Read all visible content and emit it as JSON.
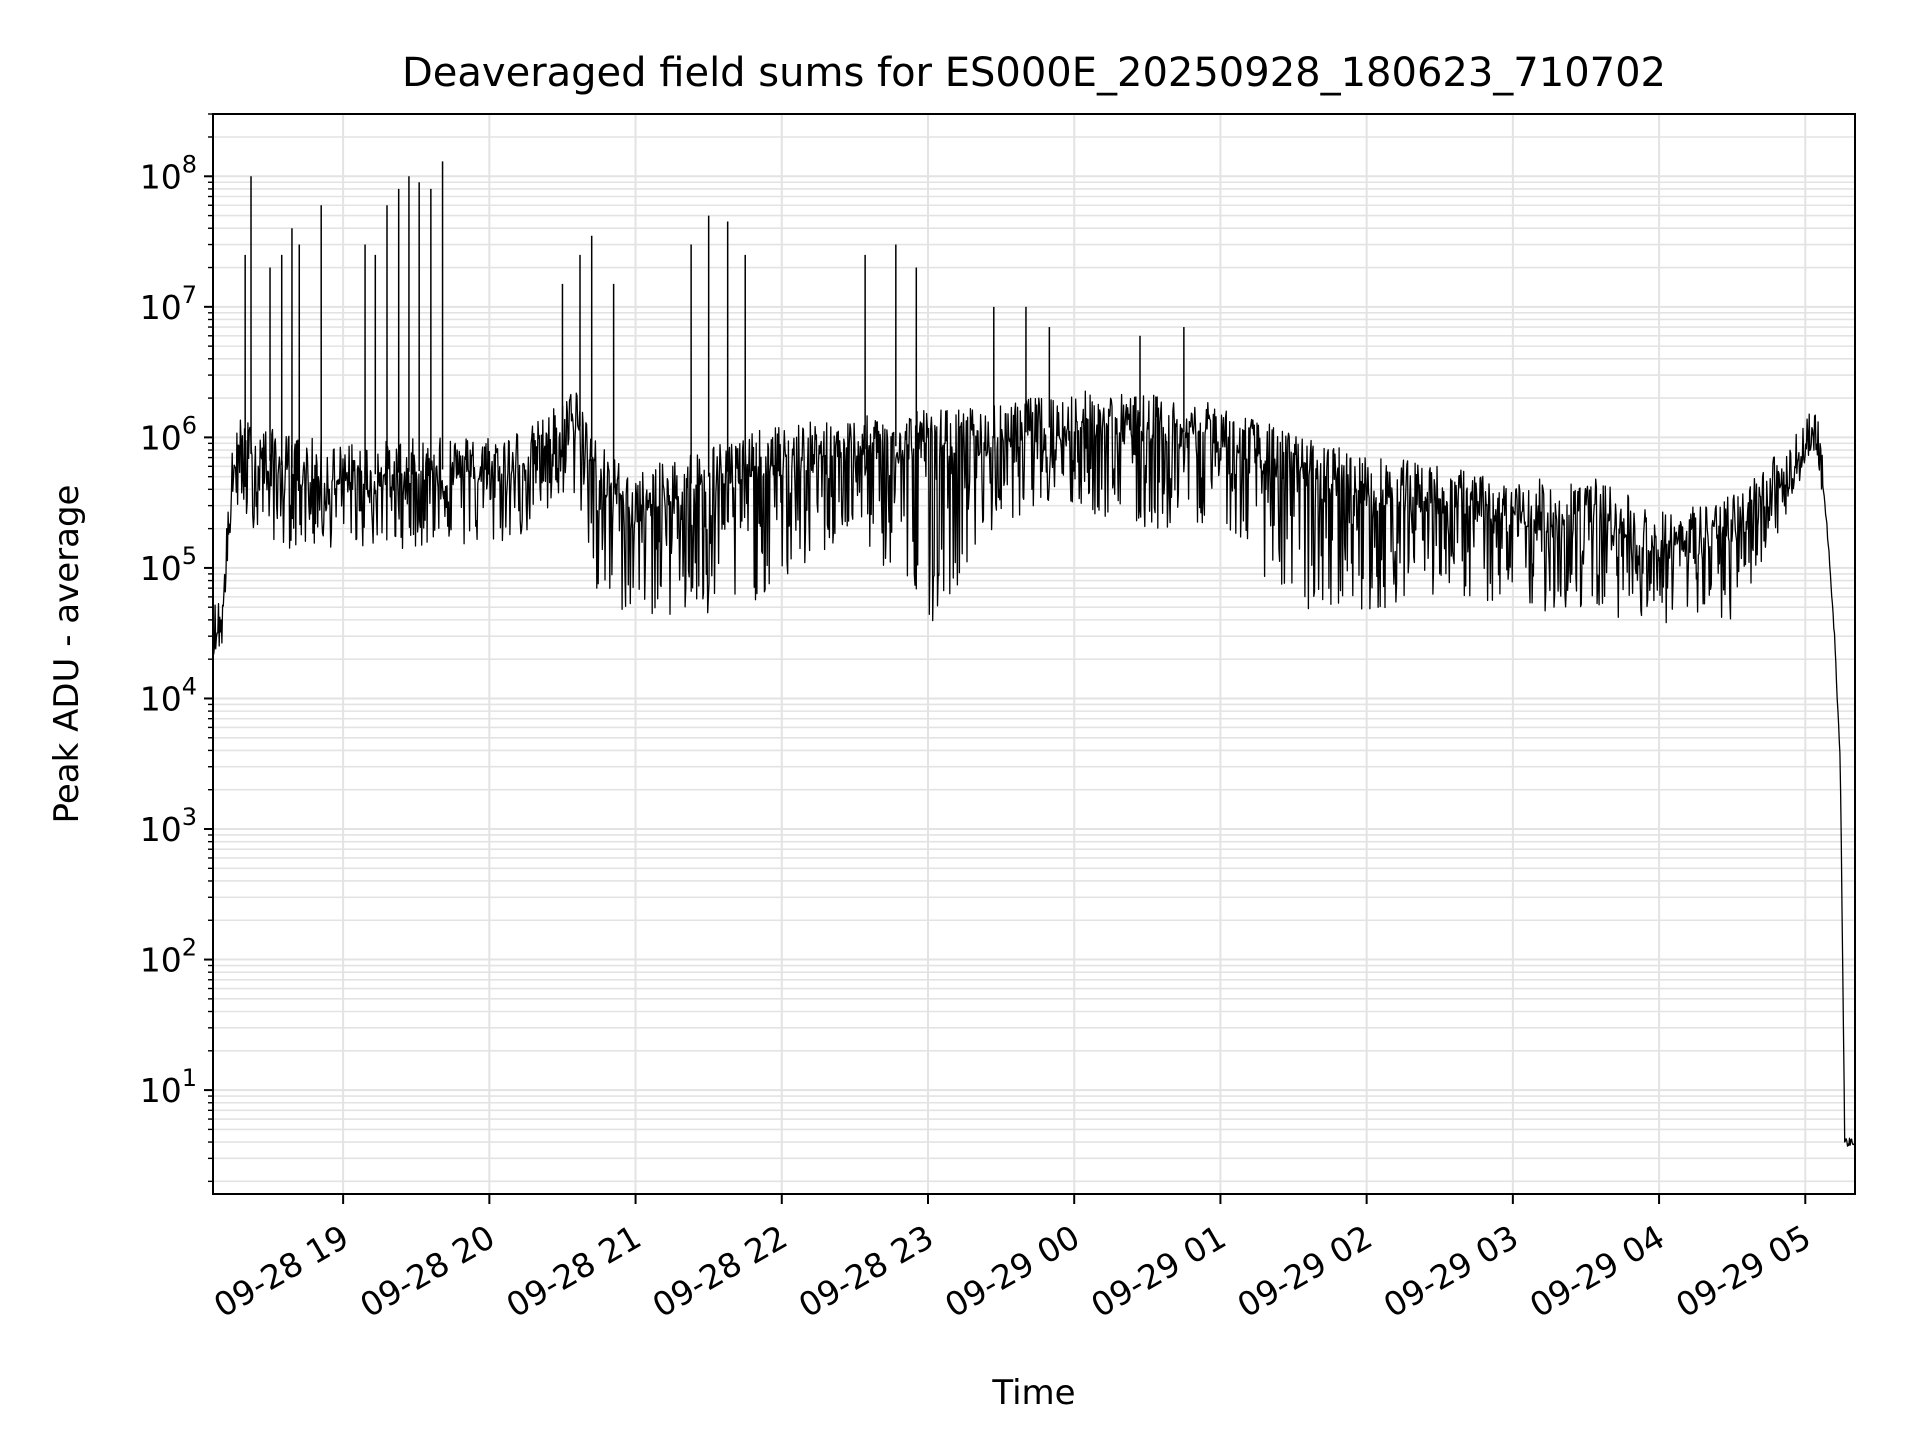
{
  "chart_data": {
    "type": "line",
    "title": "Deaveraged field sums for ES000E_20250928_180623_710702",
    "xlabel": "Time",
    "ylabel": "Peak ADU - average",
    "yscale": "log",
    "ylim": [
      1.6,
      300000000
    ],
    "xlim_hours": [
      18.11,
      29.34
    ],
    "x_ticks": [
      {
        "label": "09-28 19",
        "hour": 19
      },
      {
        "label": "09-28 20",
        "hour": 20
      },
      {
        "label": "09-28 21",
        "hour": 21
      },
      {
        "label": "09-28 22",
        "hour": 22
      },
      {
        "label": "09-28 23",
        "hour": 23
      },
      {
        "label": "09-29 00",
        "hour": 24
      },
      {
        "label": "09-29 01",
        "hour": 25
      },
      {
        "label": "09-29 02",
        "hour": 26
      },
      {
        "label": "09-29 03",
        "hour": 27
      },
      {
        "label": "09-29 04",
        "hour": 28
      },
      {
        "label": "09-29 05",
        "hour": 29
      }
    ],
    "y_ticks": [
      {
        "base": "10",
        "exp": "1",
        "value": 10
      },
      {
        "base": "10",
        "exp": "2",
        "value": 100
      },
      {
        "base": "10",
        "exp": "3",
        "value": 1000
      },
      {
        "base": "10",
        "exp": "4",
        "value": 10000
      },
      {
        "base": "10",
        "exp": "5",
        "value": 100000
      },
      {
        "base": "10",
        "exp": "6",
        "value": 1000000
      },
      {
        "base": "10",
        "exp": "7",
        "value": 10000000
      },
      {
        "base": "10",
        "exp": "8",
        "value": 100000000
      }
    ],
    "grid": true,
    "line_color": "#000000",
    "grid_color": "#e3e3e3",
    "series": [
      {
        "name": "peak_adu_minus_average",
        "envelope_hours": [
          18.11,
          18.17,
          18.25,
          18.3,
          18.6,
          19.0,
          19.5,
          20.0,
          20.3,
          20.6,
          20.75,
          21.0,
          21.5,
          22.0,
          22.5,
          23.0,
          23.5,
          24.0,
          24.5,
          25.0,
          25.5,
          26.0,
          26.5,
          27.0,
          27.5,
          28.0,
          28.5,
          28.9,
          29.0,
          29.05,
          29.1,
          29.15,
          29.2,
          29.24,
          29.27,
          29.3,
          29.34
        ],
        "envelope_median": [
          30000,
          40000,
          600000,
          800000,
          600000,
          500000,
          550000,
          600000,
          700000,
          1400000,
          500000,
          300000,
          500000,
          700000,
          800000,
          900000,
          1000000,
          1300000,
          1200000,
          1000000,
          600000,
          400000,
          350000,
          250000,
          300000,
          150000,
          200000,
          550000,
          900000,
          1100000,
          700000,
          200000,
          30000,
          3000,
          4,
          4,
          4
        ],
        "envelope_low": [
          22000,
          25000,
          200000,
          250000,
          150000,
          150000,
          150000,
          150000,
          200000,
          400000,
          50000,
          50000,
          40000,
          80000,
          200000,
          40000,
          250000,
          300000,
          200000,
          250000,
          50000,
          50000,
          70000,
          50000,
          50000,
          40000,
          40000,
          300000,
          600000,
          900000,
          500000,
          150000,
          20000,
          2000,
          4,
          4,
          4
        ],
        "spikes": [
          {
            "hour": 18.37,
            "value": 100000000
          },
          {
            "hour": 18.33,
            "value": 25000000
          },
          {
            "hour": 18.5,
            "value": 20000000
          },
          {
            "hour": 18.58,
            "value": 25000000
          },
          {
            "hour": 18.65,
            "value": 40000000
          },
          {
            "hour": 18.7,
            "value": 30000000
          },
          {
            "hour": 18.85,
            "value": 60000000
          },
          {
            "hour": 19.15,
            "value": 30000000
          },
          {
            "hour": 19.22,
            "value": 25000000
          },
          {
            "hour": 19.3,
            "value": 60000000
          },
          {
            "hour": 19.38,
            "value": 80000000
          },
          {
            "hour": 19.45,
            "value": 100000000
          },
          {
            "hour": 19.52,
            "value": 90000000
          },
          {
            "hour": 19.6,
            "value": 80000000
          },
          {
            "hour": 19.68,
            "value": 130000000
          },
          {
            "hour": 20.5,
            "value": 15000000
          },
          {
            "hour": 20.62,
            "value": 25000000
          },
          {
            "hour": 20.7,
            "value": 35000000
          },
          {
            "hour": 20.85,
            "value": 15000000
          },
          {
            "hour": 21.38,
            "value": 30000000
          },
          {
            "hour": 21.5,
            "value": 50000000
          },
          {
            "hour": 21.63,
            "value": 45000000
          },
          {
            "hour": 21.75,
            "value": 25000000
          },
          {
            "hour": 22.57,
            "value": 25000000
          },
          {
            "hour": 22.78,
            "value": 30000000
          },
          {
            "hour": 22.92,
            "value": 20000000
          },
          {
            "hour": 23.45,
            "value": 10000000
          },
          {
            "hour": 23.67,
            "value": 10000000
          },
          {
            "hour": 23.83,
            "value": 7000000
          },
          {
            "hour": 24.45,
            "value": 6000000
          },
          {
            "hour": 24.75,
            "value": 7000000
          }
        ]
      }
    ]
  }
}
